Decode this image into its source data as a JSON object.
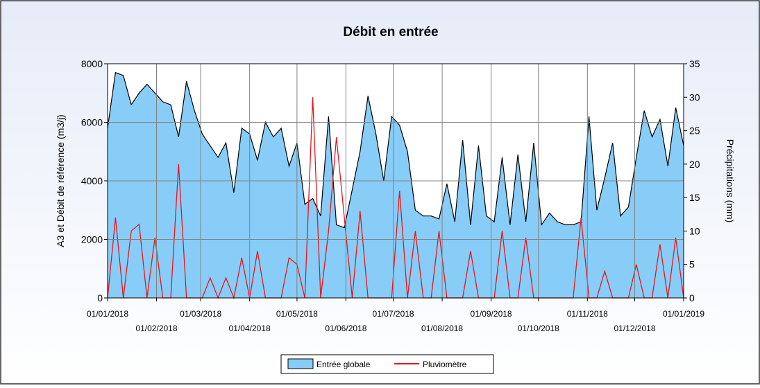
{
  "chart_data": {
    "type": "area_line",
    "title": "Débit en entrée",
    "ylabel": "A3 et Débit de référence (m3/j)",
    "y2label": "Précipitations (mm)",
    "xlim": [
      "01/01/2018",
      "01/01/2019"
    ],
    "xticks": [
      "01/01/2018",
      "01/02/2018",
      "01/03/2018",
      "01/04/2018",
      "01/05/2018",
      "01/06/2018",
      "01/07/2018",
      "01/08/2018",
      "01/09/2018",
      "01/10/2018",
      "01/11/2018",
      "01/12/2018",
      "01/01/2019"
    ],
    "ylim": [
      0,
      8000
    ],
    "yticks": [
      0,
      2000,
      4000,
      6000,
      8000
    ],
    "y2lim": [
      0,
      35
    ],
    "y2ticks": [
      0,
      5,
      10,
      15,
      20,
      25,
      30,
      35
    ],
    "grid": true,
    "legend": "bottom",
    "x": [
      "01/01/2018",
      "06/01/2018",
      "11/01/2018",
      "16/01/2018",
      "21/01/2018",
      "26/01/2018",
      "31/01/2018",
      "05/02/2018",
      "10/02/2018",
      "15/02/2018",
      "20/02/2018",
      "25/02/2018",
      "02/03/2018",
      "07/03/2018",
      "12/03/2018",
      "17/03/2018",
      "22/03/2018",
      "27/03/2018",
      "01/04/2018",
      "06/04/2018",
      "11/04/2018",
      "16/04/2018",
      "21/04/2018",
      "26/04/2018",
      "01/05/2018",
      "06/05/2018",
      "11/05/2018",
      "16/05/2018",
      "21/05/2018",
      "26/05/2018",
      "31/05/2018",
      "05/06/2018",
      "10/06/2018",
      "15/06/2018",
      "20/06/2018",
      "25/06/2018",
      "30/06/2018",
      "05/07/2018",
      "10/07/2018",
      "15/07/2018",
      "20/07/2018",
      "25/07/2018",
      "30/07/2018",
      "04/08/2018",
      "09/08/2018",
      "14/08/2018",
      "19/08/2018",
      "24/08/2018",
      "29/08/2018",
      "03/09/2018",
      "08/09/2018",
      "13/09/2018",
      "18/09/2018",
      "23/09/2018",
      "28/09/2018",
      "03/10/2018",
      "08/10/2018",
      "13/10/2018",
      "18/10/2018",
      "23/10/2018",
      "28/10/2018",
      "02/11/2018",
      "07/11/2018",
      "12/11/2018",
      "17/11/2018",
      "22/11/2018",
      "27/11/2018",
      "02/12/2018",
      "07/12/2018",
      "12/12/2018",
      "17/12/2018",
      "22/12/2018",
      "27/12/2018",
      "01/01/2019"
    ],
    "series": [
      {
        "name": "Entrée globale",
        "kind": "area",
        "color": "#87cdf7",
        "edge_color": "#000000",
        "values": [
          5800,
          7700,
          7600,
          6600,
          7000,
          7300,
          7000,
          6700,
          6600,
          5500,
          7400,
          6400,
          5600,
          5200,
          4800,
          5300,
          3600,
          5800,
          5600,
          4700,
          6000,
          5500,
          5800,
          4500,
          5300,
          3200,
          3400,
          2800,
          6200,
          2500,
          2400,
          3700,
          5000,
          6900,
          5600,
          4000,
          6200,
          5900,
          5000,
          3000,
          2800,
          2800,
          2700,
          3900,
          2600,
          5400,
          2500,
          5200,
          2800,
          2600,
          4800,
          2500,
          4900,
          2600,
          5300,
          2500,
          2900,
          2600,
          2500,
          2500,
          2600,
          6200,
          3000,
          4100,
          5300,
          2800,
          3100,
          4800,
          6400,
          5500,
          6100,
          4500,
          6500,
          5200
        ]
      },
      {
        "name": "Pluviomètre",
        "kind": "line",
        "axis": "y2",
        "color": "#e8141c",
        "values": [
          0,
          12,
          0,
          10,
          11,
          0,
          9,
          0,
          0,
          20,
          0,
          0,
          0,
          3,
          0,
          3,
          0,
          6,
          0,
          7,
          0,
          0,
          0,
          6,
          5,
          0,
          30,
          0,
          10,
          24,
          12,
          0,
          13,
          0,
          0,
          0,
          0,
          16,
          0,
          10,
          0,
          0,
          10,
          0,
          0,
          0,
          7,
          0,
          0,
          0,
          10,
          0,
          0,
          9,
          0,
          0,
          0,
          0,
          0,
          0,
          12,
          0,
          0,
          4,
          0,
          0,
          0,
          5,
          0,
          0,
          8,
          0,
          9,
          0
        ]
      }
    ]
  }
}
